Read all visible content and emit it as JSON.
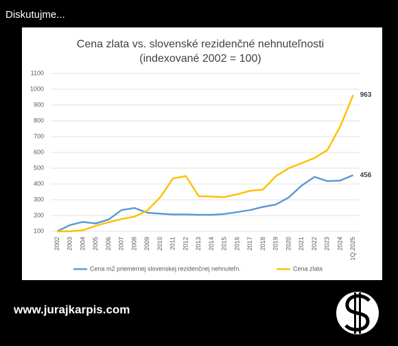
{
  "header": "Diskutujme...",
  "footer": "www.jurajkarpis.com",
  "chart_data": {
    "type": "line",
    "title": "Cena zlata vs. slovenské rezidenčné nehnuteľnosti",
    "subtitle": "(indexované 2002 = 100)",
    "categories": [
      "2002",
      "2003",
      "2004",
      "2005",
      "2006",
      "2007",
      "2008",
      "2009",
      "2010",
      "2011",
      "2012",
      "2013",
      "2014",
      "2015",
      "2016",
      "2017",
      "2018",
      "2019",
      "2020",
      "2021",
      "2022",
      "2023",
      "2024",
      "1Q.2025"
    ],
    "series": [
      {
        "name": "Cena m2 priemernej slovenskej rezidenčnej nehnuteľn.",
        "color": "#5b9bd5",
        "values": [
          100,
          140,
          160,
          150,
          175,
          235,
          248,
          218,
          212,
          207,
          207,
          205,
          205,
          210,
          222,
          235,
          255,
          270,
          315,
          390,
          445,
          418,
          422,
          456
        ]
      },
      {
        "name": "Cena zlata",
        "color": "#ffc000",
        "values": [
          100,
          100,
          107,
          135,
          158,
          178,
          193,
          232,
          315,
          435,
          450,
          323,
          320,
          317,
          335,
          357,
          365,
          450,
          500,
          532,
          565,
          615,
          765,
          963
        ]
      }
    ],
    "ylim": [
      100,
      1100
    ],
    "yticks": [
      100,
      200,
      300,
      400,
      500,
      600,
      700,
      800,
      900,
      1000,
      1100
    ],
    "grid": true,
    "legend": "bottom"
  }
}
